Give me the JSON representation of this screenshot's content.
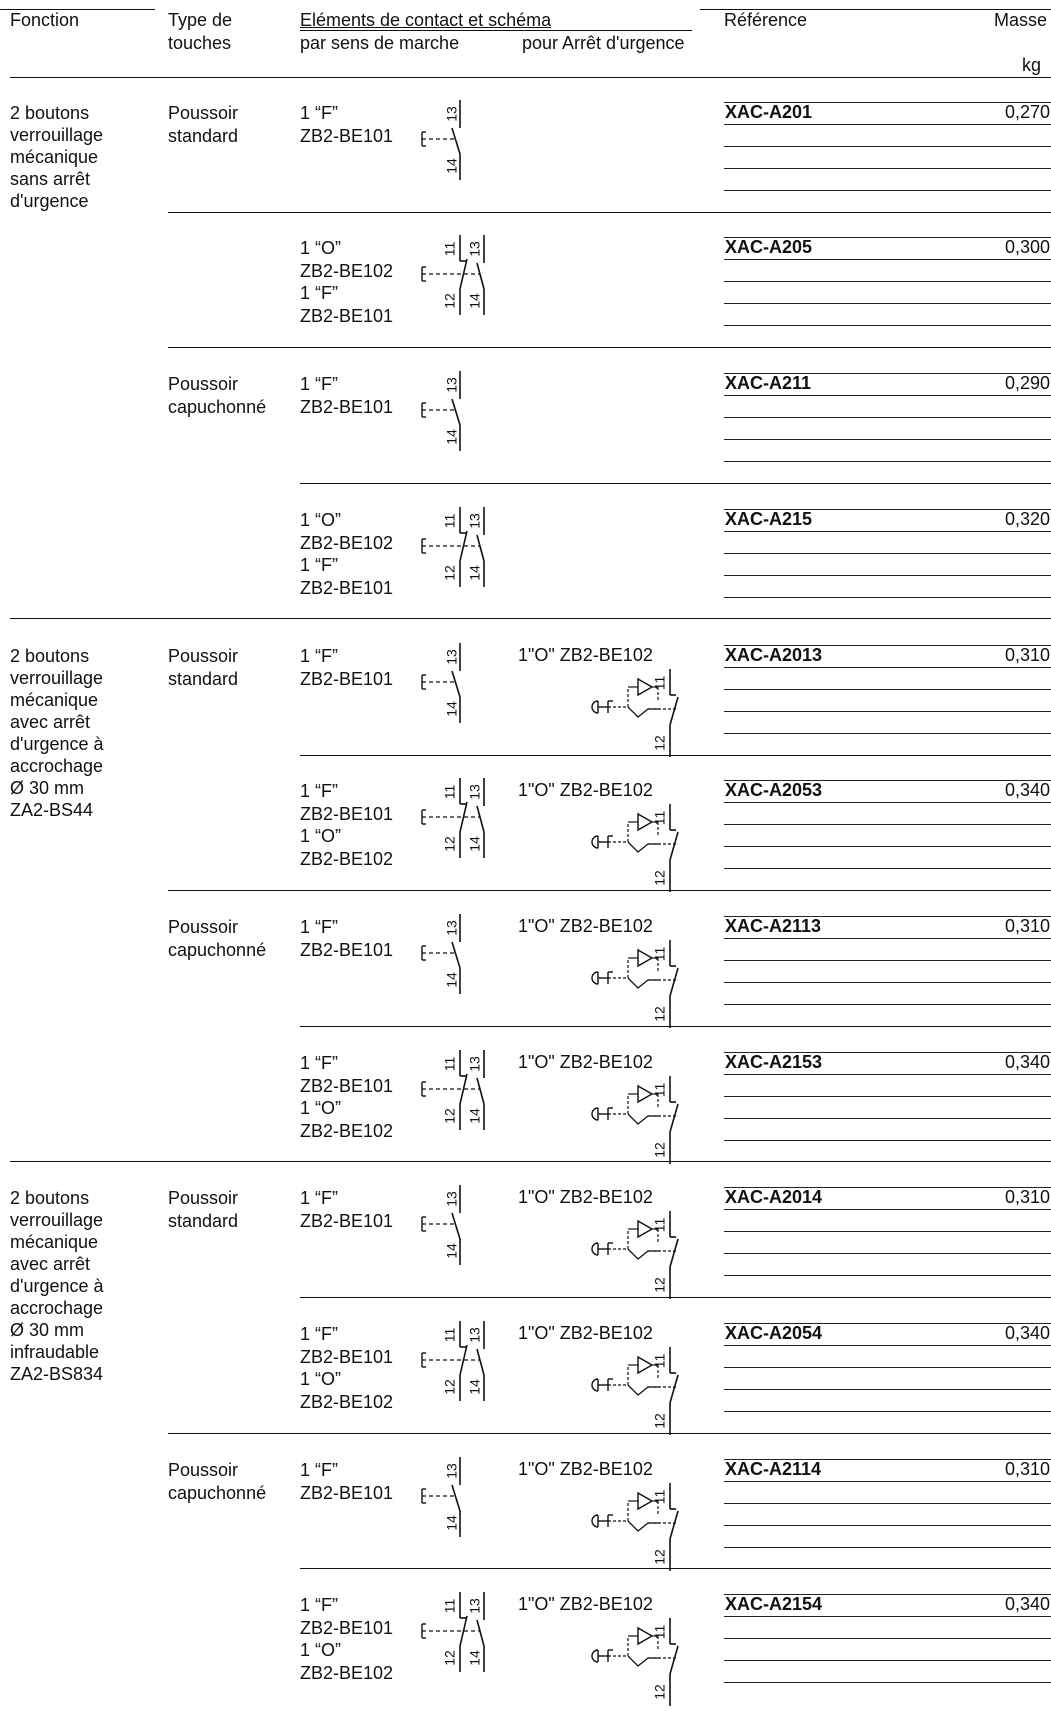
{
  "header": {
    "col_fonction": "Fonction",
    "col_type_line1": "Type de",
    "col_type_line2": "touches",
    "col_elements": "Eléments de contact et schéma",
    "col_marche": "par sens de marche",
    "col_arret": "pour Arrêt d'urgence",
    "col_reference": "Référence",
    "col_masse": "Masse",
    "unit_masse": "kg"
  },
  "groups": [
    {
      "fonction": [
        "2 boutons",
        "verrouillage",
        "mécanique",
        "sans arrêt",
        "d'urgence"
      ]
    },
    {
      "fonction": [
        "2 boutons",
        "verrouillage",
        "mécanique",
        "avec arrêt",
        "d'urgence à",
        "accrochage",
        "Ø 30 mm",
        "ZA2-BS44"
      ]
    },
    {
      "fonction": [
        "2 boutons",
        "verrouillage",
        "mécanique",
        "avec arrêt",
        "d'urgence à",
        "accrochage",
        "Ø 30 mm",
        "infraudable",
        "ZA2-BS834"
      ]
    }
  ],
  "schema_labels": {
    "c13": "13",
    "c14": "14",
    "c11": "11",
    "c12": "12"
  },
  "rows": [
    {
      "type": [
        "Poussoir",
        "standard"
      ],
      "marche": [
        "1 “F”",
        "ZB2-BE101"
      ],
      "schema": "F",
      "arret": "",
      "reference": "XAC-A201",
      "masse": "0,270"
    },
    {
      "type": [
        "",
        ""
      ],
      "marche": [
        "1 “O”",
        "ZB2-BE102",
        "1 “F”",
        "ZB2-BE101"
      ],
      "schema": "OF",
      "arret": "",
      "reference": "XAC-A205",
      "masse": "0,300"
    },
    {
      "type": [
        "Poussoir",
        "capuchonné"
      ],
      "marche": [
        "1 “F”",
        "ZB2-BE101"
      ],
      "schema": "F",
      "arret": "",
      "reference": "XAC-A211",
      "masse": "0,290"
    },
    {
      "type": [
        "",
        ""
      ],
      "marche": [
        "1 “O”",
        "ZB2-BE102",
        "1 “F”",
        "ZB2-BE101"
      ],
      "schema": "OF",
      "arret": "",
      "reference": "XAC-A215",
      "masse": "0,320"
    },
    {
      "type": [
        "Poussoir",
        "standard"
      ],
      "marche": [
        "1 “F”",
        "ZB2-BE101"
      ],
      "schema": "F",
      "arret": "1\"O\" ZB2-BE102",
      "reference": "XAC-A2013",
      "masse": "0,310"
    },
    {
      "type": [
        "",
        ""
      ],
      "marche": [
        "1 “F”",
        "ZB2-BE101",
        "1 “O”",
        "ZB2-BE102"
      ],
      "schema": "OF",
      "arret": "1\"O\" ZB2-BE102",
      "reference": "XAC-A2053",
      "masse": "0,340"
    },
    {
      "type": [
        "Poussoir",
        "capuchonné"
      ],
      "marche": [
        "1 “F”",
        "ZB2-BE101"
      ],
      "schema": "F",
      "arret": "1\"O\" ZB2-BE102",
      "reference": "XAC-A2113",
      "masse": "0,310"
    },
    {
      "type": [
        "",
        ""
      ],
      "marche": [
        "1 “F”",
        "ZB2-BE101",
        "1 “O”",
        "ZB2-BE102"
      ],
      "schema": "OF",
      "arret": "1\"O\" ZB2-BE102",
      "reference": "XAC-A2153",
      "masse": "0,340"
    },
    {
      "type": [
        "Poussoir",
        "standard"
      ],
      "marche": [
        "1 “F”",
        "ZB2-BE101"
      ],
      "schema": "F",
      "arret": "1\"O\" ZB2-BE102",
      "reference": "XAC-A2014",
      "masse": "0,310"
    },
    {
      "type": [
        "",
        ""
      ],
      "marche": [
        "1 “F”",
        "ZB2-BE101",
        "1 “O”",
        "ZB2-BE102"
      ],
      "schema": "OF",
      "arret": "1\"O\" ZB2-BE102",
      "reference": "XAC-A2054",
      "masse": "0,340"
    },
    {
      "type": [
        "Poussoir",
        "capuchonné"
      ],
      "marche": [
        "1 “F”",
        "ZB2-BE101"
      ],
      "schema": "F",
      "arret": "1\"O\" ZB2-BE102",
      "reference": "XAC-A2114",
      "masse": "0,310"
    },
    {
      "type": [
        "",
        ""
      ],
      "marche": [
        "1 “F”",
        "ZB2-BE101",
        "1 “O”",
        "ZB2-BE102"
      ],
      "schema": "OF",
      "arret": "1\"O\" ZB2-BE102",
      "reference": "XAC-A2154",
      "masse": "0,340"
    }
  ]
}
